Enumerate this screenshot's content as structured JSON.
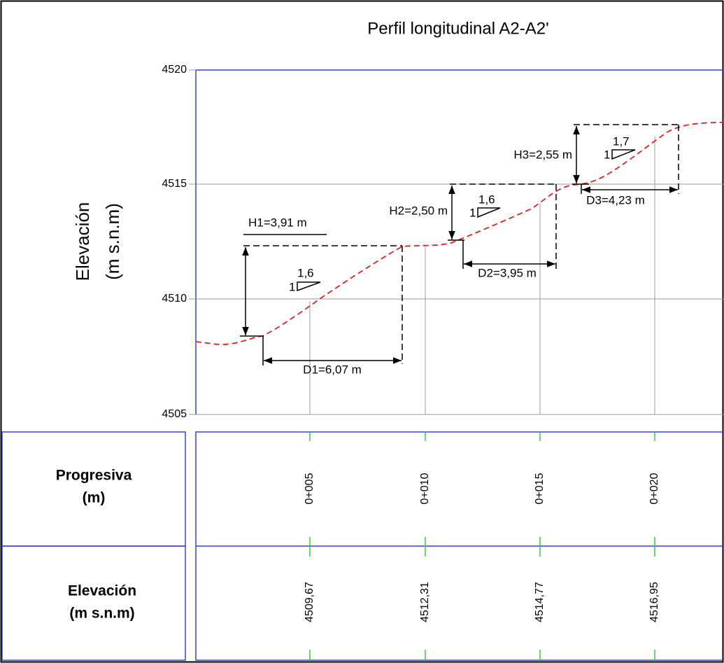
{
  "title": "Perfil longitudinal A2-A2'",
  "y_axis": {
    "label_line1": "Elevación",
    "label_line2": "(m s.n.m)",
    "ticks": [
      "4520",
      "4515",
      "4510",
      "4505"
    ]
  },
  "annotations": {
    "h1": "H1=3,91 m",
    "d1": "D1=6,07 m",
    "slope1": {
      "run": "1,6",
      "rise": "1"
    },
    "h2": "H2=2,50 m",
    "d2": "D2=3,95 m",
    "slope2": {
      "run": "1,6",
      "rise": "1"
    },
    "h3": "H3=2,55 m",
    "d3": "D3=4,23 m",
    "slope3": {
      "run": "1,7",
      "rise": "1"
    }
  },
  "table": {
    "row_headers": [
      [
        "Progresiva",
        "(m)"
      ],
      [
        "Elevación",
        "(m s.n.m)"
      ]
    ],
    "progresiva": [
      "0+005",
      "0+010",
      "0+015",
      "0+020"
    ],
    "elevacion": [
      "4509,67",
      "4512,31",
      "4514,77",
      "4516,95"
    ]
  }
}
